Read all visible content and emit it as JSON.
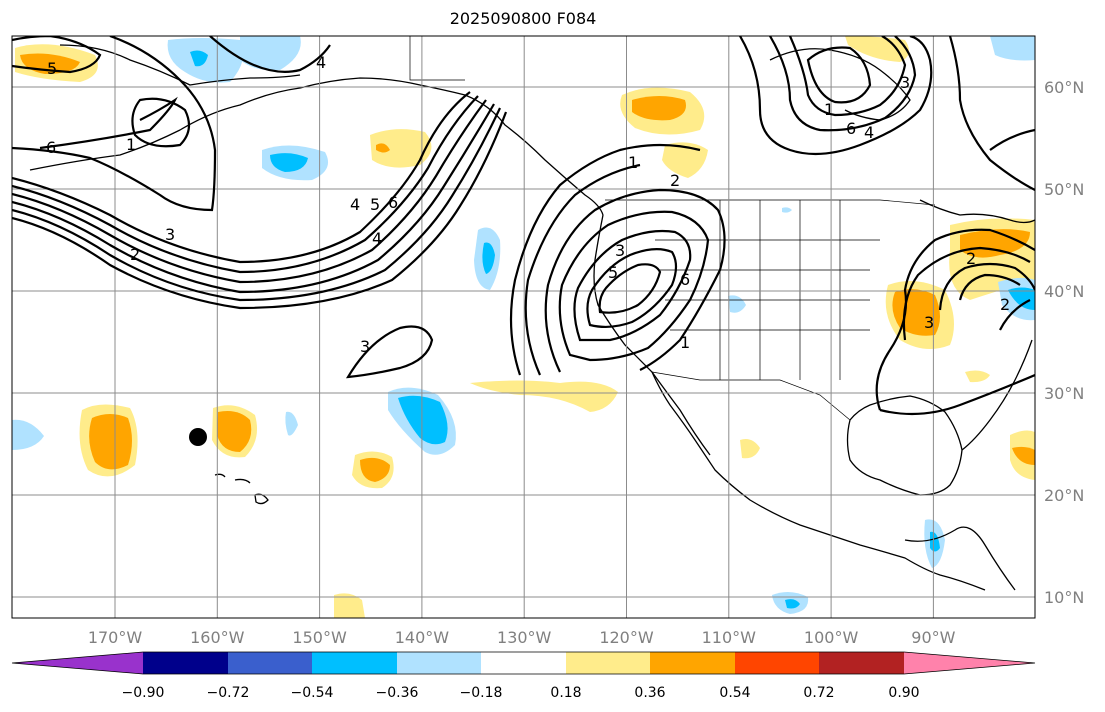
{
  "title": "2025090800 F084",
  "map": {
    "projection": "plate-carree",
    "lon_range": [
      -180,
      -80
    ],
    "lat_range": [
      8,
      65
    ],
    "grid": true,
    "lon_ticks": [
      "170°W",
      "160°W",
      "150°W",
      "140°W",
      "130°W",
      "120°W",
      "110°W",
      "100°W",
      "90°W"
    ],
    "lat_ticks": [
      "10°N",
      "20°N",
      "30°N",
      "40°N",
      "50°N",
      "60°N"
    ],
    "marker": {
      "name": "black-dot",
      "lon": -162,
      "lat": 25.7
    },
    "contour_labels": [
      "5",
      "6",
      "1",
      "2",
      "3",
      "4",
      "5",
      "6",
      "4",
      "3",
      "1",
      "1",
      "2",
      "3",
      "5",
      "6",
      "4",
      "1",
      "6",
      "4",
      "3",
      "2",
      "2",
      "3"
    ]
  },
  "colorbar": {
    "ticks": [
      "−0.90",
      "−0.72",
      "−0.54",
      "−0.36",
      "−0.18",
      "0.18",
      "0.36",
      "0.54",
      "0.72",
      "0.90"
    ],
    "colors": [
      "#9932cc",
      "#00008b",
      "#3a5fcd",
      "#00bfff",
      "#b0e2ff",
      "#ffffff",
      "#ffec8b",
      "#ffa500",
      "#ff4500",
      "#b22222",
      "#ff82ab"
    ]
  }
}
